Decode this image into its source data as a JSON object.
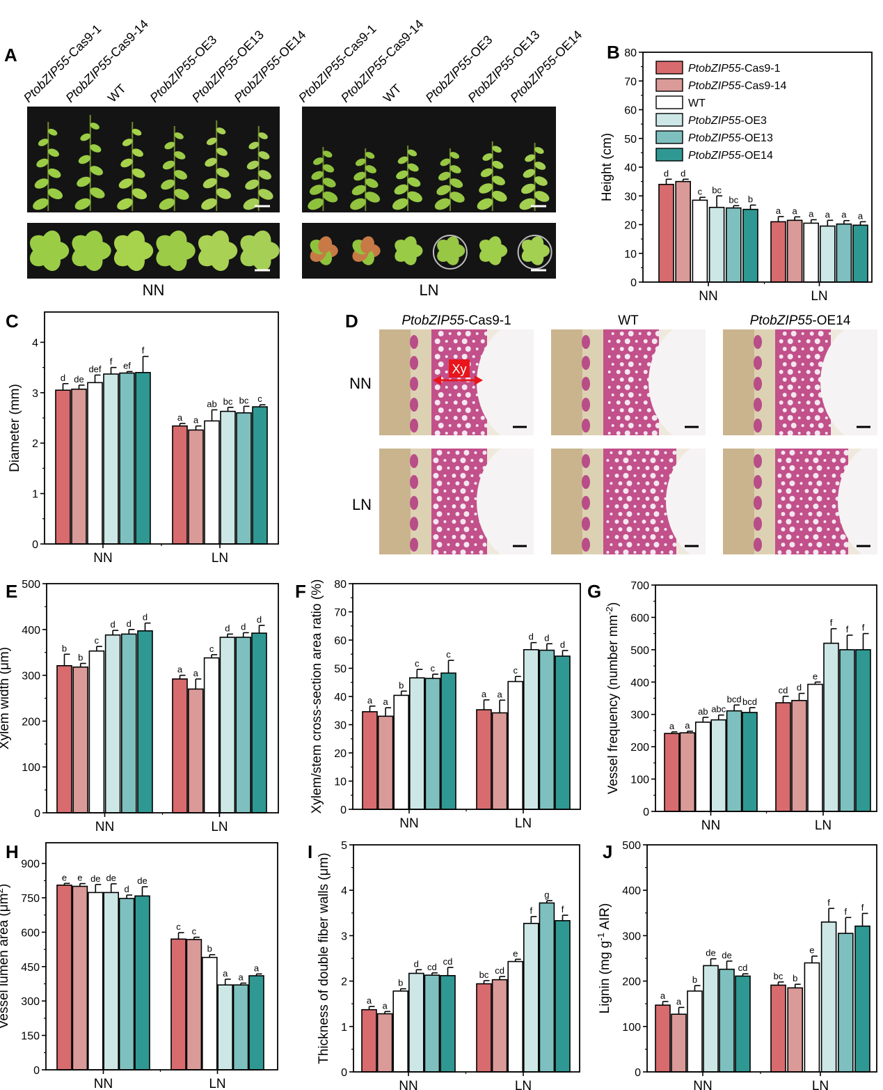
{
  "colors": {
    "series": [
      "#d76b6e",
      "#d99a98",
      "#ffffff",
      "#cce7e6",
      "#7ec0bf",
      "#2f9892"
    ],
    "black": "#000000",
    "photo_bg": "#141414",
    "leaf": "#8cc63f",
    "stain": "#c2508a",
    "arrow": "#e8151b"
  },
  "legend": {
    "entries": [
      {
        "italic": "PtobZIP55",
        "rest": "-Cas9-1"
      },
      {
        "italic": "PtobZIP55",
        "rest": "-Cas9-14"
      },
      {
        "italic": "",
        "rest": "WT"
      },
      {
        "italic": "PtobZIP55",
        "rest": "-OE3"
      },
      {
        "italic": "PtobZIP55",
        "rest": "-OE13"
      },
      {
        "italic": "PtobZIP55",
        "rest": "-OE14"
      }
    ]
  },
  "photo_panel": {
    "letter": "A",
    "genotype_labels": [
      {
        "italic": "PtobZIP55",
        "rest": "-Cas9-1"
      },
      {
        "italic": "PtobZIP55",
        "rest": "-Cas9-14"
      },
      {
        "italic": "",
        "rest": "WT"
      },
      {
        "italic": "PtobZIP55",
        "rest": "-OE3"
      },
      {
        "italic": "PtobZIP55",
        "rest": "-OE13"
      },
      {
        "italic": "PtobZIP55",
        "rest": "-OE14"
      }
    ],
    "condition_labels": [
      "NN",
      "LN"
    ]
  },
  "section_panel": {
    "letter": "D",
    "column_labels": [
      {
        "italic": "PtobZIP55",
        "rest": "-Cas9-1"
      },
      {
        "italic": "",
        "rest": "WT"
      },
      {
        "italic": "PtobZIP55",
        "rest": "-OE14"
      }
    ],
    "row_labels": [
      "NN",
      "LN"
    ],
    "xylem_label": "Xy"
  },
  "chart_data": [
    {
      "id": "B",
      "letter": "B",
      "type": "bar",
      "categories": [
        "NN",
        "LN"
      ],
      "ylabel": "Height (cm)",
      "ylim": [
        0,
        80
      ],
      "yticks": [
        0,
        10,
        20,
        30,
        40,
        50,
        60,
        70,
        80
      ],
      "series": [
        {
          "name": "PtobZIP55-Cas9-1",
          "values": [
            34,
            21
          ],
          "errors": [
            1.8,
            1.8
          ],
          "letters": [
            "d",
            "a"
          ]
        },
        {
          "name": "PtobZIP55-Cas9-14",
          "values": [
            35,
            21.5
          ],
          "errors": [
            0.8,
            1.2
          ],
          "letters": [
            "d",
            "a"
          ]
        },
        {
          "name": "WT",
          "values": [
            28.5,
            20.5
          ],
          "errors": [
            1,
            1.2
          ],
          "letters": [
            "c",
            "a"
          ]
        },
        {
          "name": "PtobZIP55-OE3",
          "values": [
            26,
            19.5
          ],
          "errors": [
            4,
            2
          ],
          "letters": [
            "bc",
            "a"
          ]
        },
        {
          "name": "PtobZIP55-OE13",
          "values": [
            25.8,
            20.2
          ],
          "errors": [
            0.8,
            1.2
          ],
          "letters": [
            "bc",
            "a"
          ]
        },
        {
          "name": "PtobZIP55-OE14",
          "values": [
            25.3,
            19.8
          ],
          "errors": [
            1.5,
            1.2
          ],
          "letters": [
            "b",
            "a"
          ]
        }
      ]
    },
    {
      "id": "C",
      "letter": "C",
      "type": "bar",
      "categories": [
        "NN",
        "LN"
      ],
      "ylabel": "Diameter (mm)",
      "ylim": [
        0,
        4.6
      ],
      "yticks": [
        0,
        1,
        2,
        3,
        4
      ],
      "series": [
        {
          "name": "PtobZIP55-Cas9-1",
          "values": [
            3.05,
            2.34
          ],
          "errors": [
            0.13,
            0.05
          ],
          "letters": [
            "d",
            "a"
          ]
        },
        {
          "name": "PtobZIP55-Cas9-14",
          "values": [
            3.07,
            2.26
          ],
          "errors": [
            0.08,
            0.08
          ],
          "letters": [
            "de",
            "a"
          ]
        },
        {
          "name": "WT",
          "values": [
            3.2,
            2.44
          ],
          "errors": [
            0.15,
            0.22
          ],
          "letters": [
            "def",
            "ab"
          ]
        },
        {
          "name": "PtobZIP55-OE3",
          "values": [
            3.37,
            2.63
          ],
          "errors": [
            0.13,
            0.08
          ],
          "letters": [
            "f",
            "bc"
          ]
        },
        {
          "name": "PtobZIP55-OE13",
          "values": [
            3.39,
            2.6
          ],
          "errors": [
            0.03,
            0.13
          ],
          "letters": [
            "ef",
            "bc"
          ]
        },
        {
          "name": "PtobZIP55-OE14",
          "values": [
            3.4,
            2.72
          ],
          "errors": [
            0.32,
            0.04
          ],
          "letters": [
            "f",
            "c"
          ]
        }
      ]
    },
    {
      "id": "E",
      "letter": "E",
      "type": "bar",
      "categories": [
        "NN",
        "LN"
      ],
      "ylabel": "Xylem width (μm)",
      "ylim": [
        0,
        500
      ],
      "yticks": [
        0,
        100,
        200,
        300,
        400,
        500
      ],
      "series": [
        {
          "name": "PtobZIP55-Cas9-1",
          "values": [
            321,
            292
          ],
          "errors": [
            25,
            8
          ],
          "letters": [
            "b",
            "a"
          ]
        },
        {
          "name": "PtobZIP55-Cas9-14",
          "values": [
            318,
            270
          ],
          "errors": [
            8,
            22
          ],
          "letters": [
            "b",
            "a"
          ]
        },
        {
          "name": "WT",
          "values": [
            353,
            338
          ],
          "errors": [
            10,
            7
          ],
          "letters": [
            "c",
            "c"
          ]
        },
        {
          "name": "PtobZIP55-OE3",
          "values": [
            388,
            383
          ],
          "errors": [
            10,
            7
          ],
          "letters": [
            "d",
            "d"
          ]
        },
        {
          "name": "PtobZIP55-OE13",
          "values": [
            390,
            383
          ],
          "errors": [
            10,
            10
          ],
          "letters": [
            "d",
            "d"
          ]
        },
        {
          "name": "PtobZIP55-OE14",
          "values": [
            397,
            392
          ],
          "errors": [
            17,
            17
          ],
          "letters": [
            "d",
            "d"
          ]
        }
      ]
    },
    {
      "id": "F",
      "letter": "F",
      "type": "bar",
      "categories": [
        "NN",
        "LN"
      ],
      "ylabel": "Xylem/stem cross-section area ratio (%)",
      "ylim": [
        0,
        80
      ],
      "yticks": [
        0,
        10,
        20,
        30,
        40,
        50,
        60,
        70,
        80
      ],
      "series": [
        {
          "name": "PtobZIP55-Cas9-1",
          "values": [
            34.6,
            35.3
          ],
          "errors": [
            2,
            3.5
          ],
          "letters": [
            "a",
            "a"
          ]
        },
        {
          "name": "PtobZIP55-Cas9-14",
          "values": [
            33,
            34.2
          ],
          "errors": [
            3,
            4.5
          ],
          "letters": [
            "a",
            "a"
          ]
        },
        {
          "name": "WT",
          "values": [
            40.4,
            45.3
          ],
          "errors": [
            1.5,
            1.8
          ],
          "letters": [
            "b",
            "c"
          ]
        },
        {
          "name": "PtobZIP55-OE3",
          "values": [
            46.6,
            56.6
          ],
          "errors": [
            3,
            2.5
          ],
          "letters": [
            "c",
            "d"
          ]
        },
        {
          "name": "PtobZIP55-OE13",
          "values": [
            46.4,
            56.4
          ],
          "errors": [
            1.5,
            2.3
          ],
          "letters": [
            "c",
            "d"
          ]
        },
        {
          "name": "PtobZIP55-OE14",
          "values": [
            48.3,
            54.3
          ],
          "errors": [
            4.5,
            2
          ],
          "letters": [
            "c",
            "d"
          ]
        }
      ]
    },
    {
      "id": "G",
      "letter": "G",
      "type": "bar",
      "categories": [
        "NN",
        "LN"
      ],
      "ylabel": "Vessel frequency (number mm-2)",
      "ylim": [
        0,
        700
      ],
      "yticks": [
        0,
        100,
        200,
        300,
        400,
        500,
        600,
        700
      ],
      "series": [
        {
          "name": "PtobZIP55-Cas9-1",
          "values": [
            241,
            336
          ],
          "errors": [
            5,
            20
          ],
          "letters": [
            "a",
            "cd"
          ]
        },
        {
          "name": "PtobZIP55-Cas9-14",
          "values": [
            243,
            343
          ],
          "errors": [
            5,
            22
          ],
          "letters": [
            "a",
            "d"
          ]
        },
        {
          "name": "WT",
          "values": [
            276,
            393
          ],
          "errors": [
            15,
            7
          ],
          "letters": [
            "ab",
            "e"
          ]
        },
        {
          "name": "PtobZIP55-OE3",
          "values": [
            283,
            520
          ],
          "errors": [
            15,
            45
          ],
          "letters": [
            "abc",
            "f"
          ]
        },
        {
          "name": "PtobZIP55-OE13",
          "values": [
            311,
            500
          ],
          "errors": [
            18,
            45
          ],
          "letters": [
            "bcd",
            "f"
          ]
        },
        {
          "name": "PtobZIP55-OE14",
          "values": [
            306,
            500
          ],
          "errors": [
            15,
            50
          ],
          "letters": [
            "bcd",
            "f"
          ]
        }
      ]
    },
    {
      "id": "H",
      "letter": "H",
      "type": "bar",
      "categories": [
        "NN",
        "LN"
      ],
      "ylabel": "Vessel lumen area (μm2)",
      "ylim": [
        0,
        990
      ],
      "yticks": [
        0,
        150,
        300,
        450,
        600,
        750,
        900
      ],
      "series": [
        {
          "name": "PtobZIP55-Cas9-1",
          "values": [
            805,
            570
          ],
          "errors": [
            8,
            28
          ],
          "letters": [
            "e",
            "c"
          ]
        },
        {
          "name": "PtobZIP55-Cas9-14",
          "values": [
            800,
            568
          ],
          "errors": [
            12,
            10
          ],
          "letters": [
            "e",
            "c"
          ]
        },
        {
          "name": "WT",
          "values": [
            773,
            490
          ],
          "errors": [
            35,
            12
          ],
          "letters": [
            "de",
            "b"
          ]
        },
        {
          "name": "PtobZIP55-OE3",
          "values": [
            773,
            370
          ],
          "errors": [
            38,
            25
          ],
          "letters": [
            "de",
            "a"
          ]
        },
        {
          "name": "PtobZIP55-OE13",
          "values": [
            747,
            370
          ],
          "errors": [
            15,
            8
          ],
          "letters": [
            "d",
            "a"
          ]
        },
        {
          "name": "PtobZIP55-OE14",
          "values": [
            758,
            410
          ],
          "errors": [
            40,
            8
          ],
          "letters": [
            "de",
            "a"
          ]
        }
      ]
    },
    {
      "id": "I",
      "letter": "I",
      "type": "bar",
      "categories": [
        "NN",
        "LN"
      ],
      "ylabel": "Thickness of double fiber walls (μm)",
      "ylim": [
        0,
        5
      ],
      "yticks": [
        0,
        1,
        2,
        3,
        4,
        5
      ],
      "series": [
        {
          "name": "PtobZIP55-Cas9-1",
          "values": [
            1.37,
            1.94
          ],
          "errors": [
            0.07,
            0.07
          ],
          "letters": [
            "a",
            "bc"
          ]
        },
        {
          "name": "PtobZIP55-Cas9-14",
          "values": [
            1.28,
            2.03
          ],
          "errors": [
            0.05,
            0.07
          ],
          "letters": [
            "a",
            "cd"
          ]
        },
        {
          "name": "WT",
          "values": [
            1.78,
            2.43
          ],
          "errors": [
            0.05,
            0.05
          ],
          "letters": [
            "b",
            "e"
          ]
        },
        {
          "name": "PtobZIP55-OE3",
          "values": [
            2.17,
            3.27
          ],
          "errors": [
            0.08,
            0.15
          ],
          "letters": [
            "d",
            "f"
          ]
        },
        {
          "name": "PtobZIP55-OE13",
          "values": [
            2.13,
            3.72
          ],
          "errors": [
            0.05,
            0.05
          ],
          "letters": [
            "cd",
            "g"
          ]
        },
        {
          "name": "PtobZIP55-OE14",
          "values": [
            2.12,
            3.33
          ],
          "errors": [
            0.18,
            0.12
          ],
          "letters": [
            "cd",
            "f"
          ]
        }
      ]
    },
    {
      "id": "J",
      "letter": "J",
      "type": "bar",
      "categories": [
        "NN",
        "LN"
      ],
      "ylabel": "Lignin (mg g-1 AIR)",
      "ylim": [
        0,
        500
      ],
      "yticks": [
        0,
        100,
        200,
        300,
        400,
        500
      ],
      "series": [
        {
          "name": "PtobZIP55-Cas9-1",
          "values": [
            147,
            191
          ],
          "errors": [
            8,
            7
          ],
          "letters": [
            "a",
            "bc"
          ]
        },
        {
          "name": "PtobZIP55-Cas9-14",
          "values": [
            127,
            185
          ],
          "errors": [
            15,
            8
          ],
          "letters": [
            "a",
            "b"
          ]
        },
        {
          "name": "WT",
          "values": [
            178,
            240
          ],
          "errors": [
            12,
            15
          ],
          "letters": [
            "b",
            "e"
          ]
        },
        {
          "name": "PtobZIP55-OE3",
          "values": [
            234,
            330
          ],
          "errors": [
            15,
            30
          ],
          "letters": [
            "de",
            "f"
          ]
        },
        {
          "name": "PtobZIP55-OE13",
          "values": [
            226,
            305
          ],
          "errors": [
            18,
            35
          ],
          "letters": [
            "de",
            "f"
          ]
        },
        {
          "name": "PtobZIP55-OE14",
          "values": [
            211,
            321
          ],
          "errors": [
            5,
            28
          ],
          "letters": [
            "cd",
            "f"
          ]
        }
      ]
    }
  ]
}
